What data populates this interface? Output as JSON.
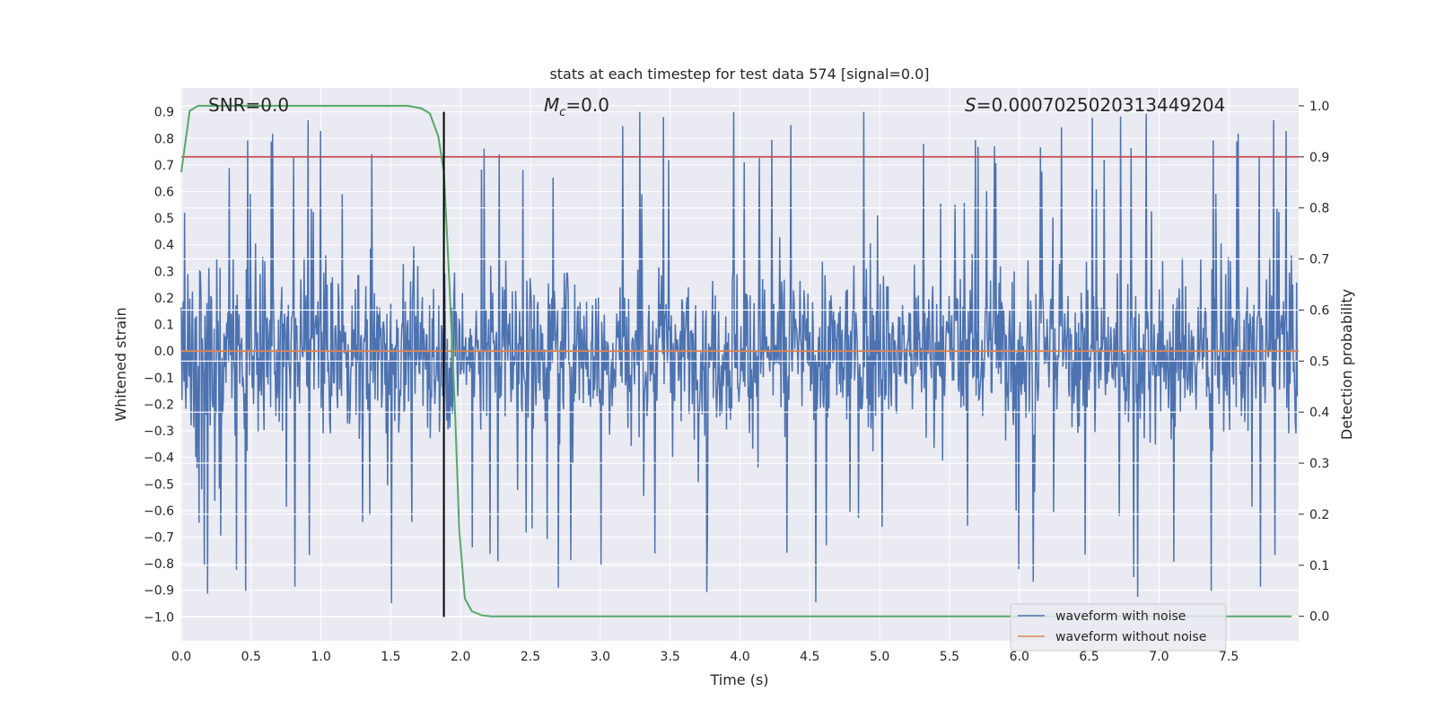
{
  "chart_data": {
    "type": "line",
    "title": "stats at each timestep for test data 574 [signal=0.0]",
    "xlabel": "Time (s)",
    "ylabel": "Whitened strain",
    "ylabel_right": "Detection probability",
    "xlim": [
      0.0,
      8.0
    ],
    "ylim": [
      -1.09,
      0.99
    ],
    "ylim_right": [
      -0.048,
      1.035
    ],
    "x_ticks": [
      "0.0",
      "0.5",
      "1.0",
      "1.5",
      "2.0",
      "2.5",
      "3.0",
      "3.5",
      "4.0",
      "4.5",
      "5.0",
      "5.5",
      "6.0",
      "6.5",
      "7.0",
      "7.5"
    ],
    "y_ticks": [
      "0.9",
      "0.8",
      "0.7",
      "0.6",
      "0.5",
      "0.4",
      "0.3",
      "0.2",
      "0.1",
      "0.0",
      "−0.1",
      "−0.2",
      "−0.3",
      "−0.4",
      "−0.5",
      "−0.6",
      "−0.7",
      "−0.8",
      "−0.9",
      "−1.0"
    ],
    "y_ticks_right": [
      "1.0",
      "0.9",
      "0.8",
      "0.7",
      "0.6",
      "0.5",
      "0.4",
      "0.3",
      "0.2",
      "0.1",
      "0.0"
    ],
    "annotations": {
      "snr": "SNR=0.0",
      "mc_symbol": "M",
      "mc_sub": "c",
      "mc_value": "=0.0",
      "s_symbol": "S",
      "s_value": "=0.0007025020313449204"
    },
    "series": [
      {
        "name": "waveform with noise",
        "color": "#4c72b0",
        "kind": "noise",
        "samples": 1700,
        "x_range": [
          0.0,
          7.99
        ],
        "envelope_min": -1.0,
        "envelope_max": 0.9
      },
      {
        "name": "waveform without noise",
        "color": "#dd8452",
        "kind": "constant",
        "value": 0.0
      },
      {
        "name": "Detection probability",
        "color": "#55a868",
        "axis": "right",
        "x": [
          0.0,
          0.06,
          0.12,
          0.3,
          0.6,
          1.0,
          1.5,
          1.62,
          1.72,
          1.78,
          1.84,
          1.88,
          1.92,
          1.96,
          1.99,
          2.03,
          2.08,
          2.15,
          2.22,
          2.4,
          3.0,
          4.0,
          5.0,
          6.0,
          7.0,
          7.95
        ],
        "y": [
          0.87,
          0.99,
          1.0,
          1.0,
          1.0,
          1.0,
          1.0,
          1.0,
          0.995,
          0.985,
          0.94,
          0.87,
          0.65,
          0.4,
          0.17,
          0.035,
          0.01,
          0.002,
          0.0,
          0.0,
          0.0,
          0.0,
          0.0,
          0.0,
          0.0,
          0.0
        ]
      }
    ],
    "threshold": {
      "value": 0.9,
      "axis": "right",
      "color": "#c44e52"
    },
    "vertical_marker": {
      "x": 1.88,
      "color": "#000000"
    },
    "legend": {
      "position": "lower-right",
      "entries": [
        "waveform with noise",
        "waveform without noise"
      ]
    }
  }
}
